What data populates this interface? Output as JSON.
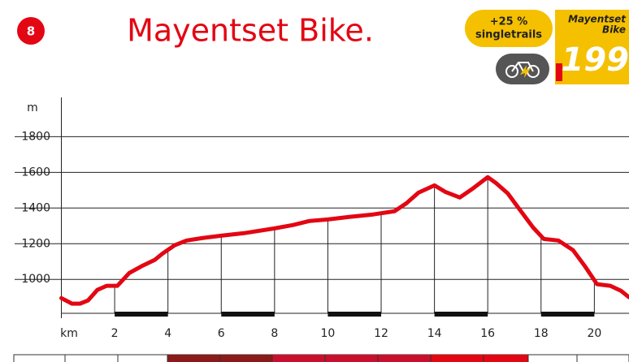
{
  "header": {
    "badge": "8",
    "title": "Mayentset Bike.",
    "tag_line1": "+25 %",
    "tag_line2": "singletrails",
    "route_name_line1": "Mayentset",
    "route_name_line2": "Bike",
    "route_number": "199"
  },
  "chart_data": {
    "type": "line",
    "y_label": "m",
    "x_label": "km",
    "color": "#e30613",
    "x": [
      0,
      0.4,
      0.7,
      1.0,
      1.35,
      1.7,
      2.1,
      2.55,
      3.0,
      3.5,
      3.8,
      4.25,
      4.7,
      5.3,
      6.0,
      6.85,
      8.0,
      8.7,
      9.3,
      10.0,
      10.8,
      11.7,
      12.5,
      12.95,
      13.4,
      14.0,
      14.4,
      14.95,
      15.4,
      16.0,
      16.3,
      16.75,
      17.2,
      17.7,
      18.1,
      18.65,
      19.2,
      19.65,
      20.1,
      20.6,
      21.0,
      21.3
    ],
    "values": [
      895,
      864,
      864,
      882,
      941,
      964,
      964,
      1036,
      1073,
      1109,
      1145,
      1191,
      1218,
      1232,
      1245,
      1259,
      1286,
      1305,
      1327,
      1336,
      1350,
      1364,
      1382,
      1427,
      1486,
      1527,
      1491,
      1459,
      1505,
      1573,
      1541,
      1482,
      1391,
      1291,
      1227,
      1218,
      1164,
      1073,
      973,
      964,
      936,
      900
    ],
    "xlim": [
      0,
      21.3
    ],
    "ylim": [
      810,
      2020
    ],
    "xticks": [
      2,
      4,
      6,
      8,
      10,
      12,
      14,
      16,
      18,
      20
    ],
    "yticks": [
      1000,
      1200,
      1400,
      1600,
      1800
    ],
    "grid": true
  }
}
